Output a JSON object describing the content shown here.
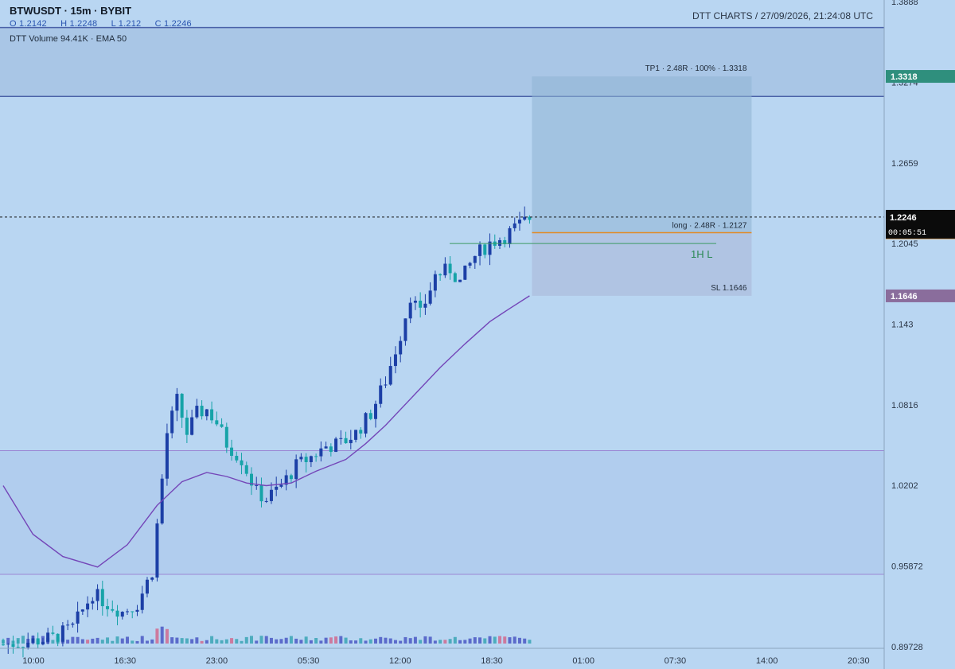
{
  "header": {
    "symbol": "BTWUSDT · 15m · BYBIT",
    "ohlc": {
      "o": "O 1.2142",
      "h": "H 1.2248",
      "l": "L 1.212",
      "c": "C 1.2246"
    },
    "indicators": "DTT Volume 94.41K  ·  EMA 50",
    "brand_time": "DTT CHARTS  /  27/09/2026, 21:24:08 UTC"
  },
  "colors": {
    "background": "#b9d6f2",
    "bull_candle": "#1c3fa6",
    "bear_candle": "#16a3a8",
    "ema": "#7446b8",
    "entry": "#e38a26",
    "tp": "#2f8f7d",
    "sl": "#8a6d9c",
    "level_line": "#4a62a8",
    "hl_line": "#3c9a63"
  },
  "chart_data": {
    "type": "candlestick",
    "timeframe": "15m",
    "x_ticks": [
      "10:00",
      "16:30",
      "23:00",
      "05:30",
      "12:00",
      "18:30",
      "01:00",
      "07:30",
      "14:00",
      "20:30"
    ],
    "y_ticks": [
      "1.3888",
      "1.3274",
      "1.2659",
      "1.2045",
      "1.143",
      "1.0816",
      "1.0202",
      "0.95872",
      "0.89728"
    ],
    "ylim": [
      0.89728,
      1.3888
    ],
    "price_labels": {
      "tp": "1.3318",
      "entry": "1.2127",
      "last": "1.2246",
      "countdown": "00:05:51",
      "sl": "1.1646"
    },
    "position": {
      "side": "long",
      "entry": 1.2127,
      "tp": 1.3318,
      "sl": 1.1646,
      "tp_label": "TP1 · 2.48R · 100% · 1.3318",
      "entry_label": "long · 2.48R · 1.2127",
      "sl_label": "SL 1.1646"
    },
    "levels": {
      "upper_lines": [
        1.369,
        1.3165
      ],
      "zone_top": 1.0467,
      "zone_bottom": 0.9524,
      "hl_level": 1.2045,
      "hl_label": "1H L"
    },
    "path": [
      [
        0,
        0.899
      ],
      [
        5,
        0.901
      ],
      [
        10,
        0.904
      ],
      [
        14,
        0.912
      ],
      [
        18,
        0.938
      ],
      [
        21,
        0.93
      ],
      [
        24,
        0.924
      ],
      [
        27,
        0.93
      ],
      [
        30,
        0.955
      ],
      [
        33,
        1.06
      ],
      [
        35,
        1.085
      ],
      [
        37,
        1.06
      ],
      [
        39,
        1.075
      ],
      [
        41,
        1.078
      ],
      [
        43,
        1.068
      ],
      [
        45,
        1.052
      ],
      [
        48,
        1.04
      ],
      [
        51,
        1.015
      ],
      [
        53,
        1.01
      ],
      [
        56,
        1.02
      ],
      [
        59,
        1.035
      ],
      [
        62,
        1.042
      ],
      [
        65,
        1.05
      ],
      [
        68,
        1.052
      ],
      [
        71,
        1.06
      ],
      [
        74,
        1.075
      ],
      [
        77,
        1.1
      ],
      [
        80,
        1.135
      ],
      [
        82,
        1.165
      ],
      [
        84,
        1.15
      ],
      [
        87,
        1.18
      ],
      [
        90,
        1.185
      ],
      [
        92,
        1.175
      ],
      [
        95,
        1.195
      ],
      [
        98,
        1.205
      ],
      [
        101,
        1.21
      ],
      [
        103,
        1.216
      ],
      [
        106,
        1.224
      ]
    ],
    "ema": [
      [
        0,
        1.02
      ],
      [
        6,
        0.983
      ],
      [
        12,
        0.966
      ],
      [
        19,
        0.958
      ],
      [
        25,
        0.975
      ],
      [
        31,
        1.005
      ],
      [
        36,
        1.023
      ],
      [
        41,
        1.03
      ],
      [
        45,
        1.027
      ],
      [
        49,
        1.022
      ],
      [
        53,
        1.02
      ],
      [
        58,
        1.022
      ],
      [
        63,
        1.031
      ],
      [
        69,
        1.04
      ],
      [
        73,
        1.052
      ],
      [
        77,
        1.066
      ],
      [
        83,
        1.09
      ],
      [
        88,
        1.11
      ],
      [
        93,
        1.128
      ],
      [
        98,
        1.145
      ],
      [
        102,
        1.155
      ],
      [
        106,
        1.1646
      ]
    ]
  }
}
